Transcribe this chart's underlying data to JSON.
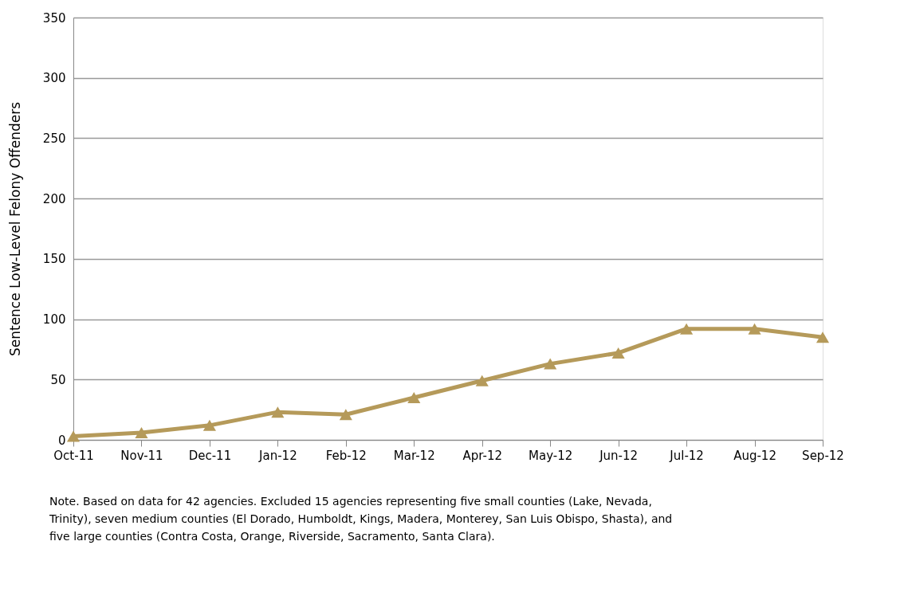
{
  "chart_data": {
    "type": "line",
    "ylabel": "Sentence Low-Level Felony Offenders",
    "categories": [
      "Oct-11",
      "Nov-11",
      "Dec-11",
      "Jan-12",
      "Feb-12",
      "Mar-12",
      "Apr-12",
      "May-12",
      "Jun-12",
      "Jul-12",
      "Aug-12",
      "Sep-12"
    ],
    "series": [
      {
        "color": "#b59a5a",
        "values": [
          3,
          6,
          12,
          23,
          21,
          35,
          49,
          63,
          72,
          92,
          92,
          85
        ]
      }
    ],
    "ylim": [
      0,
      350
    ],
    "yticks": [
      0,
      50,
      100,
      150,
      200,
      250,
      300,
      350
    ],
    "grid": "y",
    "marker": "triangle",
    "line_style": "solid",
    "annotations": [
      "Note. Based on data for 42 agencies. Excluded 15 agencies representing five small counties (Lake, Nevada, Trinity), seven medium counties (El Dorado, Humboldt, Kings, Madera, Monterey, San Luis Obispo, Shasta), and five large counties (Contra Costa, Orange, Riverside, Sacramento, Santa Clara)."
    ]
  }
}
